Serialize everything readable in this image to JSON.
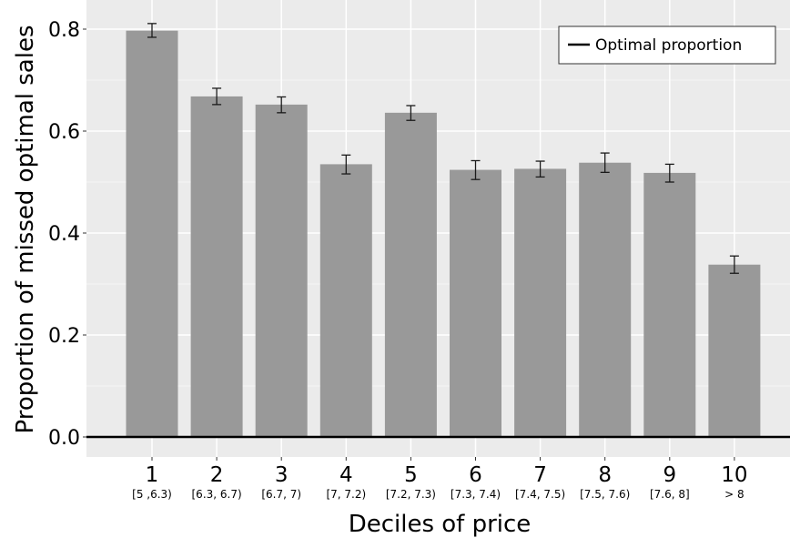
{
  "chart_data": {
    "type": "bar",
    "title": "",
    "xlabel": "Deciles of price",
    "ylabel": "Proportion of missed optimal sales",
    "ylim": [
      -0.05,
      0.84
    ],
    "yticks": [
      "0.0",
      "0.2",
      "0.4",
      "0.6",
      "0.8"
    ],
    "ytick_values": [
      0,
      0.2,
      0.4,
      0.6,
      0.8
    ],
    "categories": [
      "1",
      "2",
      "3",
      "4",
      "5",
      "6",
      "7",
      "8",
      "9",
      "10"
    ],
    "category_ranges": [
      "[5 ,6.3)",
      "[6.3, 6.7)",
      "[6.7, 7)",
      "[7, 7.2)",
      "[7.2, 7.3)",
      "[7.3, 7.4)",
      "[7.4, 7.5)",
      "[7.5, 7.6)",
      "[7.6, 8]",
      "> 8"
    ],
    "values": [
      0.797,
      0.668,
      0.652,
      0.535,
      0.636,
      0.524,
      0.526,
      0.538,
      0.518,
      0.338
    ],
    "error_low": [
      0.784,
      0.652,
      0.636,
      0.516,
      0.621,
      0.505,
      0.51,
      0.519,
      0.5,
      0.321
    ],
    "error_high": [
      0.811,
      0.684,
      0.667,
      0.553,
      0.65,
      0.542,
      0.541,
      0.557,
      0.535,
      0.355
    ],
    "reference_line": {
      "value": 0.0,
      "label": "Optimal proportion"
    },
    "legend": {
      "position": "top-right",
      "entries": [
        "Optimal proportion"
      ]
    },
    "grid": true,
    "colors": {
      "bar": "#999999",
      "panel": "#ebebeb",
      "grid": "#ffffff",
      "line": "#000000",
      "errorbar": "#1a1a1a"
    }
  }
}
